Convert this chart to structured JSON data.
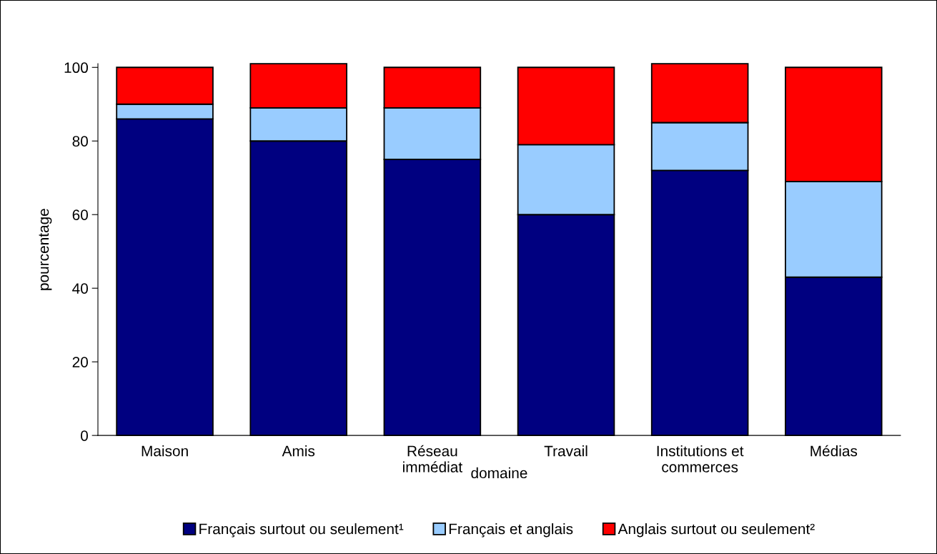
{
  "chart_data": {
    "type": "bar",
    "stacked": true,
    "xlabel": "domaine",
    "ylabel": "pourcentage",
    "categories": [
      "Maison",
      "Amis",
      "Réseau\nimmédiat",
      "Travail",
      "Institutions et\ncommerces",
      "Médias"
    ],
    "series": [
      {
        "name": "Français surtout ou seulement¹",
        "color": "#000080",
        "values": [
          86,
          80,
          75,
          60,
          72,
          43
        ]
      },
      {
        "name": "Français et anglais",
        "color": "#99ccff",
        "values": [
          4,
          9,
          14,
          19,
          13,
          26
        ]
      },
      {
        "name": "Anglais surtout ou seulement²",
        "color": "#ff0000",
        "values": [
          10,
          12,
          11,
          21,
          16,
          31
        ]
      }
    ],
    "ylim": [
      0,
      101
    ],
    "yticks": [
      0,
      20,
      40,
      60,
      80,
      100
    ],
    "grid": false,
    "legend": "bottom"
  }
}
